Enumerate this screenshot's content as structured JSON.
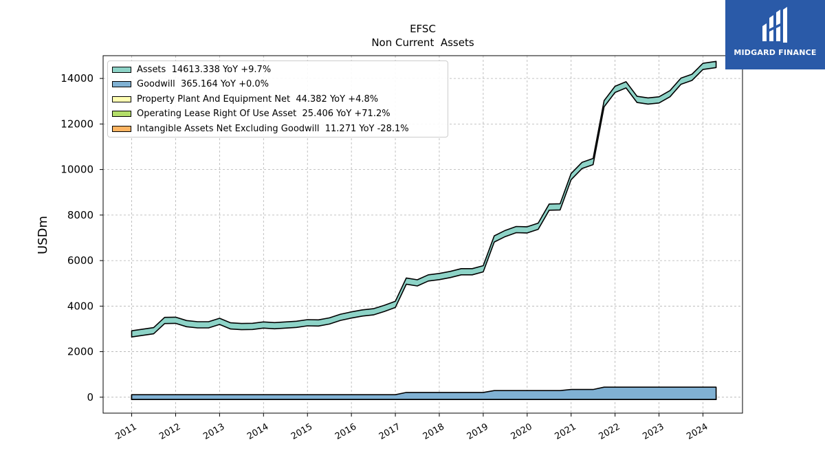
{
  "chart_data": {
    "type": "area",
    "title": "EFSC",
    "subtitle": "Non Current  Assets",
    "ylabel": "USDm",
    "xlabel": "",
    "ylim": [
      -700,
      15000
    ],
    "xlim": [
      2010.35,
      2024.9
    ],
    "yticks": [
      0,
      2000,
      4000,
      6000,
      8000,
      10000,
      12000,
      14000
    ],
    "xticks": [
      "2011",
      "2012",
      "2013",
      "2014",
      "2015",
      "2016",
      "2017",
      "2018",
      "2019",
      "2020",
      "2021",
      "2022",
      "2023",
      "2024"
    ],
    "grid": true,
    "legend_position": "top-left",
    "series": [
      {
        "name": "Assets",
        "legend_text": "Assets  14613.338 YoY +9.7%",
        "color": "#8dd3c7",
        "points": [
          [
            2011.0,
            2780
          ],
          [
            2011.5,
            2920
          ],
          [
            2011.75,
            3370
          ],
          [
            2012.0,
            3380
          ],
          [
            2012.25,
            3230
          ],
          [
            2012.5,
            3180
          ],
          [
            2012.75,
            3180
          ],
          [
            2013.0,
            3330
          ],
          [
            2013.25,
            3130
          ],
          [
            2013.5,
            3100
          ],
          [
            2013.75,
            3110
          ],
          [
            2014.0,
            3170
          ],
          [
            2014.25,
            3140
          ],
          [
            2014.5,
            3170
          ],
          [
            2014.75,
            3200
          ],
          [
            2015.0,
            3270
          ],
          [
            2015.25,
            3260
          ],
          [
            2015.5,
            3350
          ],
          [
            2015.75,
            3510
          ],
          [
            2016.0,
            3610
          ],
          [
            2016.25,
            3700
          ],
          [
            2016.5,
            3750
          ],
          [
            2016.75,
            3900
          ],
          [
            2017.0,
            4080
          ],
          [
            2017.25,
            5100
          ],
          [
            2017.5,
            5020
          ],
          [
            2017.75,
            5240
          ],
          [
            2018.0,
            5300
          ],
          [
            2018.25,
            5390
          ],
          [
            2018.5,
            5510
          ],
          [
            2018.75,
            5510
          ],
          [
            2019.0,
            5640
          ],
          [
            2019.25,
            6950
          ],
          [
            2019.5,
            7190
          ],
          [
            2019.75,
            7360
          ],
          [
            2020.0,
            7350
          ],
          [
            2020.25,
            7510
          ],
          [
            2020.5,
            8350
          ],
          [
            2020.75,
            8360
          ],
          [
            2021.0,
            9690
          ],
          [
            2021.25,
            10180
          ],
          [
            2021.5,
            10350
          ],
          [
            2021.75,
            12890
          ],
          [
            2022.0,
            13520
          ],
          [
            2022.25,
            13720
          ],
          [
            2022.5,
            13080
          ],
          [
            2022.75,
            13010
          ],
          [
            2023.0,
            13060
          ],
          [
            2023.25,
            13330
          ],
          [
            2023.5,
            13880
          ],
          [
            2023.75,
            14050
          ],
          [
            2024.0,
            14530
          ],
          [
            2024.3,
            14613
          ]
        ]
      },
      {
        "name": "Goodwill",
        "legend_text": "Goodwill  365.164 YoY +0.0%",
        "color": "#80b1d3",
        "points": [
          [
            2011.0,
            110
          ],
          [
            2017.0,
            110
          ],
          [
            2017.25,
            210
          ],
          [
            2019.0,
            210
          ],
          [
            2019.25,
            290
          ],
          [
            2020.75,
            290
          ],
          [
            2021.0,
            340
          ],
          [
            2021.5,
            340
          ],
          [
            2021.75,
            440
          ],
          [
            2024.3,
            440
          ]
        ]
      },
      {
        "name": "Property Plant And Equipment Net",
        "legend_text": "Property Plant And Equipment Net  44.382 YoY +4.8%",
        "color": "#ffffb3",
        "points": [
          [
            2011.0,
            100
          ],
          [
            2024.3,
            100
          ]
        ]
      },
      {
        "name": "Operating Lease Right Of Use Asset",
        "legend_text": "Operating Lease Right Of Use Asset  25.406 YoY +71.2%",
        "color": "#b3de69",
        "points": [
          [
            2011.0,
            60
          ],
          [
            2024.3,
            60
          ]
        ]
      },
      {
        "name": "Intangible Assets Net Excluding Goodwill",
        "legend_text": "Intangible Assets Net Excluding Goodwill  11.271 YoY -28.1%",
        "color": "#fdb462",
        "points": [
          [
            2011.0,
            40
          ],
          [
            2024.3,
            40
          ]
        ]
      }
    ]
  },
  "logo": {
    "text": "MIDGARD FINANCE",
    "bg_color": "#2a5aa8"
  }
}
